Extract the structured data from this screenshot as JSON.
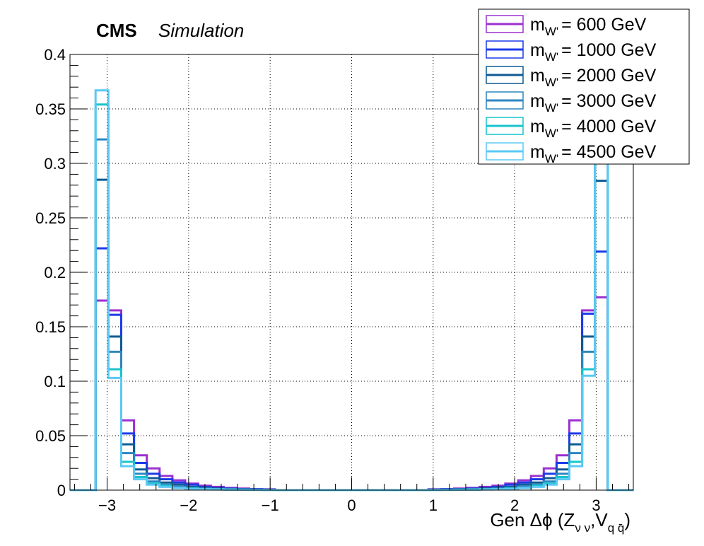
{
  "header": {
    "experiment": "CMS",
    "tag": "Simulation"
  },
  "chart_data": {
    "type": "histogram",
    "xlabel": {
      "prefix": "Gen Δϕ (Z",
      "sub1": "ν ν",
      "mid": ",V",
      "sub2": "q q̄",
      "suffix": ")"
    },
    "ylabel": "",
    "xlim": [
      -3.4558,
      3.4558
    ],
    "ylim": [
      0,
      0.4
    ],
    "bin_width": 0.1571,
    "x_ticks": [
      {
        "value": -3,
        "label": "−3"
      },
      {
        "value": -2,
        "label": "−2"
      },
      {
        "value": -1,
        "label": "−1"
      },
      {
        "value": 0,
        "label": "0"
      },
      {
        "value": 1,
        "label": "1"
      },
      {
        "value": 2,
        "label": "2"
      },
      {
        "value": 3,
        "label": "3"
      }
    ],
    "y_ticks": [
      {
        "value": 0,
        "label": "0"
      },
      {
        "value": 0.05,
        "label": "0.05"
      },
      {
        "value": 0.1,
        "label": "0.1"
      },
      {
        "value": 0.15,
        "label": "0.15"
      },
      {
        "value": 0.2,
        "label": "0.2"
      },
      {
        "value": 0.25,
        "label": "0.25"
      },
      {
        "value": 0.3,
        "label": "0.3"
      },
      {
        "value": 0.35,
        "label": "0.35"
      },
      {
        "value": 0.4,
        "label": "0.4"
      }
    ],
    "grid": true,
    "legend_position": "top-right",
    "legend_prefix": "m",
    "legend_sub": "W'",
    "series": [
      {
        "name": "= 600 GeV",
        "color": "#9b30d0",
        "left": [
          0,
          0,
          0.174,
          0.165,
          0.064,
          0.032,
          0.02,
          0.013,
          0.009,
          0.006,
          0.004,
          0.003,
          0.002,
          0.0015,
          0.001,
          0.0008
        ],
        "right": [
          0.0008,
          0.001,
          0.0015,
          0.002,
          0.003,
          0.004,
          0.006,
          0.009,
          0.013,
          0.02,
          0.032,
          0.064,
          0.165,
          0.177,
          0,
          0
        ]
      },
      {
        "name": "= 1000 GeV",
        "color": "#1c3be8",
        "left": [
          0,
          0,
          0.222,
          0.161,
          0.052,
          0.025,
          0.015,
          0.01,
          0.007,
          0.005,
          0.003,
          0.002,
          0.0015,
          0.001,
          0.0008,
          0.0005
        ],
        "right": [
          0.0005,
          0.0008,
          0.001,
          0.0015,
          0.002,
          0.003,
          0.005,
          0.007,
          0.01,
          0.015,
          0.025,
          0.052,
          0.162,
          0.219,
          0,
          0
        ]
      },
      {
        "name": "= 2000 GeV",
        "color": "#0e5a94",
        "left": [
          0,
          0,
          0.285,
          0.141,
          0.042,
          0.019,
          0.011,
          0.007,
          0.005,
          0.003,
          0.002,
          0.0015,
          0.001,
          0.0008,
          0.0005,
          0.0004
        ],
        "right": [
          0.0004,
          0.0005,
          0.0008,
          0.001,
          0.0015,
          0.002,
          0.003,
          0.005,
          0.007,
          0.011,
          0.019,
          0.042,
          0.141,
          0.284,
          0,
          0
        ]
      },
      {
        "name": "= 3000 GeV",
        "color": "#2e86c1",
        "left": [
          0,
          0,
          0.322,
          0.127,
          0.034,
          0.015,
          0.008,
          0.005,
          0.003,
          0.002,
          0.0015,
          0.001,
          0.0008,
          0.0005,
          0.0004,
          0.0003
        ],
        "right": [
          0.0003,
          0.0004,
          0.0005,
          0.0008,
          0.001,
          0.0015,
          0.002,
          0.003,
          0.005,
          0.008,
          0.015,
          0.034,
          0.127,
          0.322,
          0,
          0
        ]
      },
      {
        "name": "= 4000 GeV",
        "color": "#19c4cc",
        "left": [
          0,
          0,
          0.354,
          0.111,
          0.026,
          0.012,
          0.006,
          0.004,
          0.002,
          0.0015,
          0.001,
          0.0008,
          0.0005,
          0.0004,
          0.0003,
          0.0002
        ],
        "right": [
          0.0002,
          0.0003,
          0.0004,
          0.0005,
          0.0008,
          0.001,
          0.0015,
          0.002,
          0.004,
          0.006,
          0.012,
          0.026,
          0.111,
          0.353,
          0,
          0
        ]
      },
      {
        "name": "= 4500 GeV",
        "color": "#5bc8f5",
        "left": [
          0,
          0,
          0.367,
          0.103,
          0.022,
          0.01,
          0.005,
          0.003,
          0.002,
          0.0012,
          0.0008,
          0.0006,
          0.0004,
          0.0003,
          0.0002,
          0.0002
        ],
        "right": [
          0.0002,
          0.0002,
          0.0003,
          0.0004,
          0.0006,
          0.0008,
          0.0012,
          0.002,
          0.003,
          0.005,
          0.01,
          0.022,
          0.105,
          0.368,
          0,
          0
        ]
      }
    ]
  }
}
